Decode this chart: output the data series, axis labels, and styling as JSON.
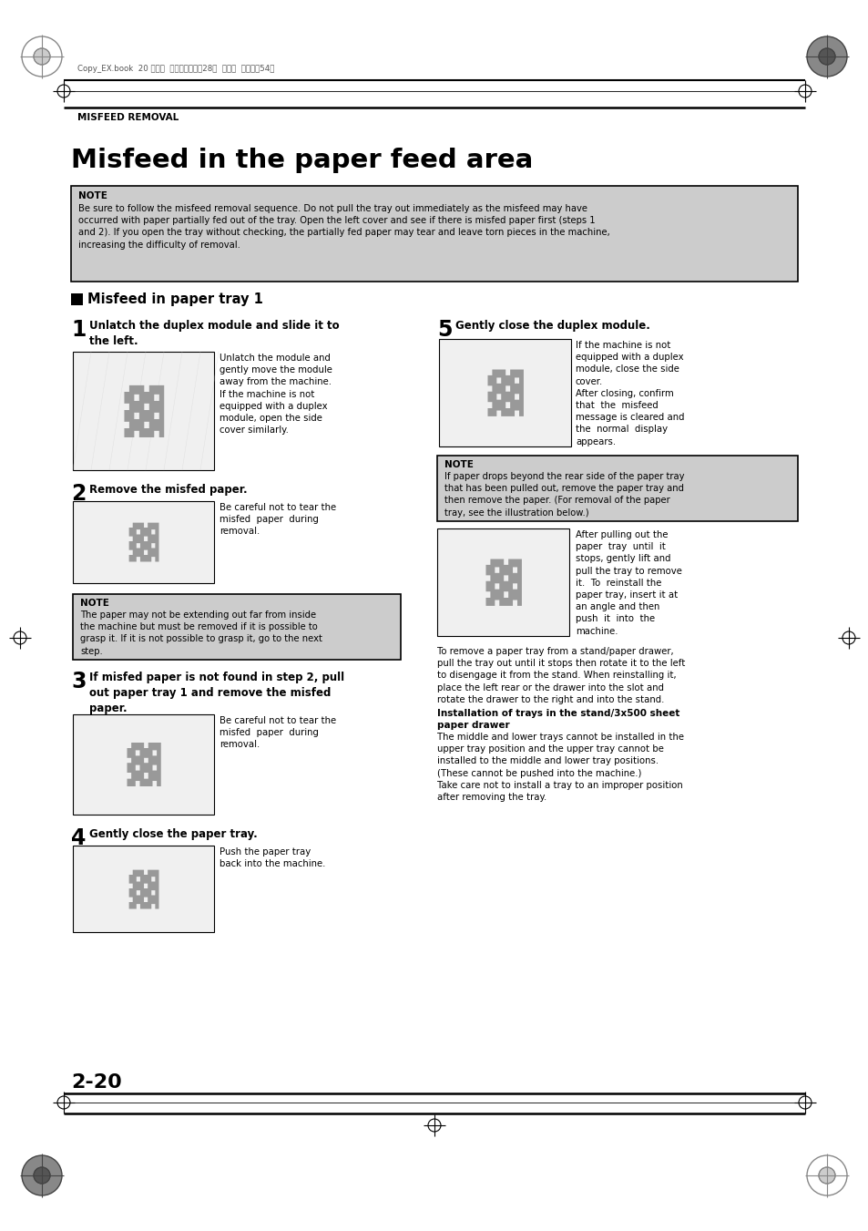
{
  "page_bg": "#ffffff",
  "header_text": "MISFEED REMOVAL",
  "page_number": "2-20",
  "main_title": "Misfeed in the paper feed area",
  "note_bg": "#cccccc",
  "note_title": "NOTE",
  "note_text": "Be sure to follow the misfeed removal sequence. Do not pull the tray out immediately as the misfeed may have\noccurred with paper partially fed out of the tray. Open the left cover and see if there is misfed paper first (steps 1\nand 2). If you open the tray without checking, the partially fed paper may tear and leave torn pieces in the machine,\nincreasing the difficulty of removal.",
  "section_title": "Misfeed in paper tray 1",
  "step1_title": "Unlatch the duplex module and slide it to\nthe left.",
  "step1_body": "Unlatch the module and\ngently move the module\naway from the machine.\nIf the machine is not\nequipped with a duplex\nmodule, open the side\ncover similarly.",
  "step2_title": "Remove the misfed paper.",
  "step2_body": "Be careful not to tear the\nmisfed  paper  during\nremoval.",
  "note2_title": "NOTE",
  "note2_text": "The paper may not be extending out far from inside\nthe machine but must be removed if it is possible to\ngrasp it. If it is not possible to grasp it, go to the next\nstep.",
  "step3_title": "If misfed paper is not found in step 2, pull\nout paper tray 1 and remove the misfed\npaper.",
  "step3_body": "Be careful not to tear the\nmisfed  paper  during\nremoval.",
  "step4_title": "Gently close the paper tray.",
  "step4_body": "Push the paper tray\nback into the machine.",
  "step5_title": "Gently close the duplex module.",
  "step5_body": "If the machine is not\nequipped with a duplex\nmodule, close the side\ncover.\nAfter closing, confirm\nthat  the  misfeed\nmessage is cleared and\nthe  normal  display\nappears.",
  "note3_title": "NOTE",
  "note3_text": "If paper drops beyond the rear side of the paper tray\nthat has been pulled out, remove the paper tray and\nthen remove the paper. (For removal of the paper\ntray, see the illustration below.)",
  "right_body2": "After pulling out the\npaper  tray  until  it\nstops, gently lift and\npull the tray to remove\nit.  To  reinstall the\npaper tray, insert it at\nan angle and then\npush  it  into  the\nmachine.",
  "right_body3": "To remove a paper tray from a stand/paper drawer,\npull the tray out until it stops then rotate it to the left\nto disengage it from the stand. When reinstalling it,\nplace the left rear or the drawer into the slot and\nrotate the drawer to the right and into the stand.",
  "install_title": "Installation of trays in the stand/3x500 sheet\npaper drawer",
  "install_body": "The middle and lower trays cannot be installed in the\nupper tray position and the upper tray cannot be\ninstalled to the middle and lower tray positions.\n(These cannot be pushed into the machine.)\nTake care not to install a tray to an improper position\nafter removing the tray.",
  "header_japanese": "Copy_EX.book  20 ページ  ２００４年９月26日  火曜日  午後９時54分"
}
